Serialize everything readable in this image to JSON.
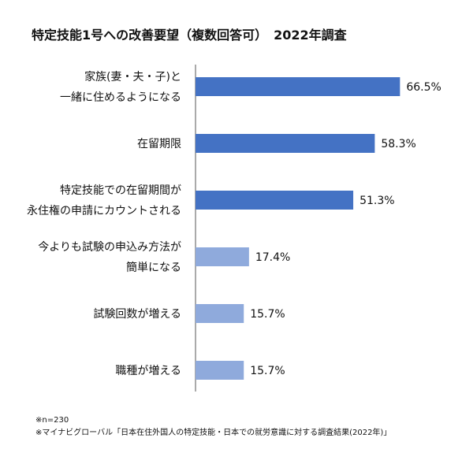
{
  "chart_data": {
    "type": "bar",
    "orientation": "horizontal",
    "title": "特定技能1号への改善要望（複数回答可）　2022年調査",
    "categories": [
      [
        "家族(妻・夫・子)と",
        "一緒に住めるようになる"
      ],
      [
        "在留期限"
      ],
      [
        "特定技能での在留期間が",
        "永住権の申請にカウントされる"
      ],
      [
        "今よりも試験の申込み方法が",
        "簡単になる"
      ],
      [
        "試験回数が増える"
      ],
      [
        "職種が増える"
      ]
    ],
    "values": [
      66.5,
      58.3,
      51.3,
      17.4,
      15.7,
      15.7
    ],
    "value_labels": [
      "66.5%",
      "58.3%",
      "51.3%",
      "17.4%",
      "15.7%",
      "15.7%"
    ],
    "unit": "%",
    "xlim": [
      0,
      100
    ],
    "grid": false,
    "legend": "none",
    "colors": {
      "highlight": "#4472C4",
      "normal": "#8FAADC",
      "axis": "#555555"
    },
    "highlight_count": 3
  },
  "footnotes": [
    "※n=230",
    "※マイナビグローバル「日本在住外国人の特定技能・日本での就労意識に対する調査結果(2022年)」"
  ]
}
